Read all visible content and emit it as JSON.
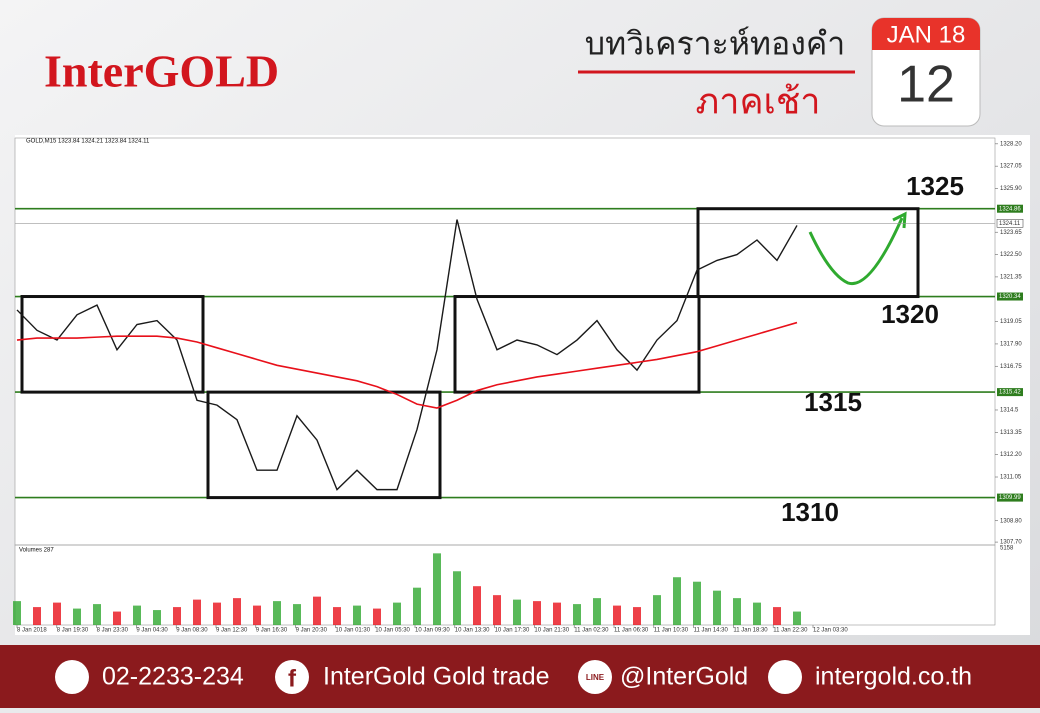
{
  "header": {
    "logo": "InterGOLD",
    "title": "บทวิเคราะห์ทองคำ",
    "subtitle": "ภาคเช้า",
    "calendar_month": "JAN 18",
    "calendar_day": "12"
  },
  "chart_data": {
    "type": "line",
    "title": "GOLD,M15  1323.84 1324.21 1323.84 1324.11",
    "x_labels": [
      "8 Jan 2018",
      "8 Jan 19:30",
      "8 Jan 23:30",
      "9 Jan 04:30",
      "9 Jan 08:30",
      "9 Jan 12:30",
      "9 Jan 16:30",
      "9 Jan 20:30",
      "10 Jan 01:30",
      "10 Jan 05:30",
      "10 Jan 09:30",
      "10 Jan 13:30",
      "10 Jan 17:30",
      "10 Jan 21:30",
      "11 Jan 02:30",
      "11 Jan 06:30",
      "11 Jan 10:30",
      "11 Jan 14:30",
      "11 Jan 18:30",
      "11 Jan 22:30",
      "12 Jan 03:30"
    ],
    "series": [
      {
        "name": "GOLD,M15",
        "color": "#1a1a1a",
        "values": [
          1319.65,
          1318.6,
          1318.1,
          1319.4,
          1319.9,
          1317.6,
          1318.9,
          1319.1,
          1318.1,
          1315.0,
          1314.75,
          1314.0,
          1311.4,
          1311.4,
          1314.2,
          1312.95,
          1310.4,
          1311.4,
          1310.4,
          1310.4,
          1313.5,
          1317.6,
          1324.3,
          1320.2,
          1317.6,
          1318.1,
          1317.85,
          1317.35,
          1318.1,
          1319.1,
          1317.6,
          1316.55,
          1318.1,
          1319.1,
          1321.7,
          1322.2,
          1322.5,
          1323.25,
          1322.2,
          1324.0
        ]
      },
      {
        "name": "MA",
        "color": "#e8101a",
        "values": [
          1318.1,
          1318.2,
          1318.2,
          1318.2,
          1318.25,
          1318.3,
          1318.3,
          1318.3,
          1318.2,
          1318.0,
          1317.7,
          1317.4,
          1317.1,
          1316.8,
          1316.6,
          1316.4,
          1316.2,
          1316.0,
          1315.7,
          1315.3,
          1314.8,
          1314.6,
          1315.0,
          1315.5,
          1315.8,
          1316.0,
          1316.2,
          1316.35,
          1316.5,
          1316.65,
          1316.8,
          1316.95,
          1317.1,
          1317.3,
          1317.5,
          1317.8,
          1318.1,
          1318.4,
          1318.7,
          1319.0
        ]
      }
    ],
    "ylim": [
      1307.55,
      1328.5
    ],
    "yticks": [
      {
        "value": 1328.2,
        "label": "1328.20"
      },
      1327.05,
      {
        "value": 1325.9,
        "label": "1325.90"
      },
      1323.65,
      {
        "value": 1322.5,
        "label": "1322.50"
      },
      1321.35,
      1319.05,
      {
        "value": 1317.9,
        "label": "1317.90"
      },
      1316.75,
      1314.5,
      1313.35,
      {
        "value": 1312.2,
        "label": "1312.20"
      },
      1311.05,
      {
        "value": 1308.8,
        "label": "1308.80"
      },
      {
        "value": 1307.7,
        "label": "1307.70"
      }
    ],
    "levels": [
      1324.86,
      1320.34,
      1315.42,
      1309.99
    ],
    "level_color": "#2e7d1e",
    "current_price": 1324.11,
    "targets": [
      1325,
      1320,
      1315,
      1310
    ],
    "volume": {
      "title": "Volumes 287",
      "ylim": [
        0,
        5158
      ],
      "yticks": [
        5158
      ],
      "up_color": "#2fa82f",
      "down_color": "#e8101a",
      "values": [
        1600,
        1200,
        1500,
        1100,
        1400,
        900,
        1300,
        1000,
        1200,
        1700,
        1500,
        1800,
        1300,
        1600,
        1400,
        1900,
        1200,
        1300,
        1100,
        1500,
        2500,
        4800,
        3600,
        2600,
        2000,
        1700,
        1600,
        1500,
        1400,
        1800,
        1300,
        1200,
        2000,
        3200,
        2900,
        2300,
        1800,
        1500,
        1200,
        900
      ]
    }
  },
  "footer": {
    "phone": "02-2233-234",
    "facebook": "InterGold Gold trade",
    "line": "@InterGold",
    "website": "intergold.co.th"
  }
}
